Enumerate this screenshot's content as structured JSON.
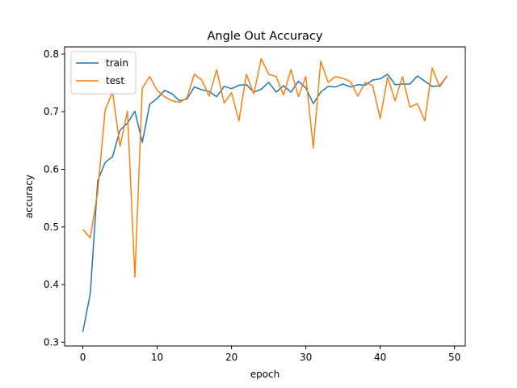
{
  "chart_data": {
    "type": "line",
    "title": "Angle Out Accuracy",
    "xlabel": "epoch",
    "ylabel": "accuracy",
    "xlim": [
      -2.45,
      51.45
    ],
    "ylim": [
      0.2935,
      0.8125
    ],
    "xticks": [
      0,
      10,
      20,
      30,
      40,
      50
    ],
    "yticks": [
      0.3,
      0.4,
      0.5,
      0.6,
      0.7,
      0.8
    ],
    "grid": false,
    "legend_position": "top-left",
    "x": [
      0,
      1,
      2,
      3,
      4,
      5,
      6,
      7,
      8,
      9,
      10,
      11,
      12,
      13,
      14,
      15,
      16,
      17,
      18,
      19,
      20,
      21,
      22,
      23,
      24,
      25,
      26,
      27,
      28,
      29,
      30,
      31,
      32,
      33,
      34,
      35,
      36,
      37,
      38,
      39,
      40,
      41,
      42,
      43,
      44,
      45,
      46,
      47,
      48,
      49
    ],
    "series": [
      {
        "name": "train",
        "color": "#1f77b4",
        "values": [
          0.318,
          0.384,
          0.58,
          0.612,
          0.622,
          0.668,
          0.68,
          0.701,
          0.647,
          0.713,
          0.723,
          0.737,
          0.731,
          0.719,
          0.722,
          0.743,
          0.738,
          0.735,
          0.726,
          0.744,
          0.74,
          0.746,
          0.747,
          0.734,
          0.739,
          0.751,
          0.734,
          0.745,
          0.734,
          0.753,
          0.741,
          0.714,
          0.734,
          0.744,
          0.743,
          0.748,
          0.743,
          0.747,
          0.746,
          0.755,
          0.757,
          0.765,
          0.747,
          0.748,
          0.748,
          0.762,
          0.753,
          0.744,
          0.745,
          0.762
        ]
      },
      {
        "name": "test",
        "color": "#ff7f0e",
        "values": [
          0.496,
          0.481,
          0.561,
          0.703,
          0.734,
          0.64,
          0.701,
          0.413,
          0.741,
          0.761,
          0.737,
          0.726,
          0.719,
          0.716,
          0.724,
          0.765,
          0.755,
          0.727,
          0.773,
          0.715,
          0.733,
          0.684,
          0.765,
          0.731,
          0.792,
          0.765,
          0.761,
          0.729,
          0.773,
          0.726,
          0.761,
          0.637,
          0.788,
          0.751,
          0.761,
          0.758,
          0.752,
          0.727,
          0.751,
          0.745,
          0.688,
          0.76,
          0.719,
          0.761,
          0.708,
          0.714,
          0.684,
          0.776,
          0.743,
          0.762
        ]
      }
    ]
  }
}
